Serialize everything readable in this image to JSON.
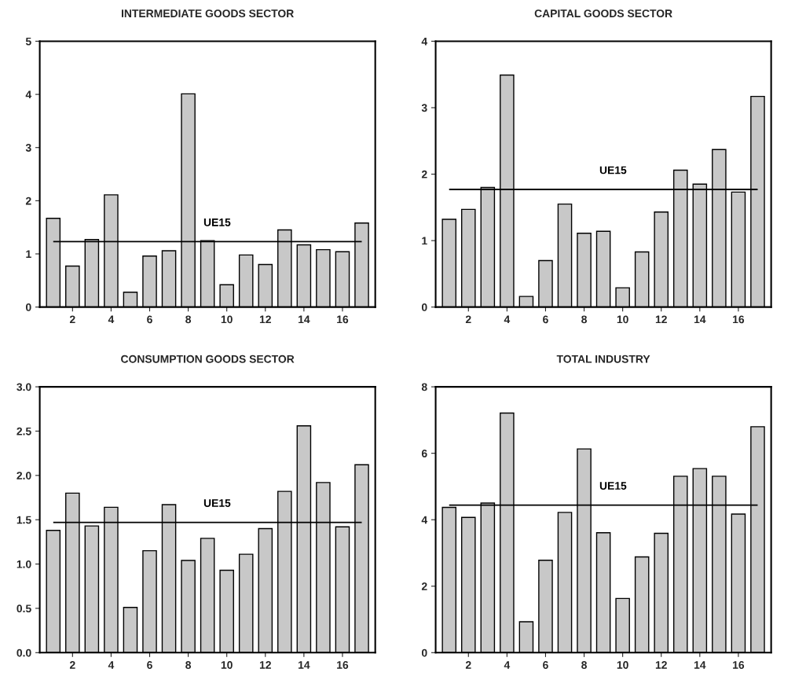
{
  "chart_data": [
    {
      "type": "bar",
      "title": "INTERMEDIATE GOODS SECTOR",
      "x": [
        1,
        2,
        3,
        4,
        5,
        6,
        7,
        8,
        9,
        10,
        11,
        12,
        13,
        14,
        15,
        16,
        17
      ],
      "values": [
        1.67,
        0.77,
        1.27,
        2.11,
        0.28,
        0.96,
        1.06,
        4.01,
        1.25,
        0.42,
        0.98,
        0.8,
        1.45,
        1.17,
        1.08,
        1.04,
        1.58
      ],
      "color": "#c8c8c8",
      "xlim": [
        0.3,
        17.7
      ],
      "xticks": [
        2,
        4,
        6,
        8,
        10,
        12,
        14,
        16
      ],
      "ylim": [
        0,
        5
      ],
      "yticks": [
        0,
        1,
        2,
        3,
        4,
        5
      ],
      "ref_lines": [
        {
          "axis": "y",
          "value": 1.23,
          "label": "UE15"
        }
      ],
      "grid": false
    },
    {
      "type": "bar",
      "title": "CAPITAL GOODS SECTOR",
      "x": [
        1,
        2,
        3,
        4,
        5,
        6,
        7,
        8,
        9,
        10,
        11,
        12,
        13,
        14,
        15,
        16,
        17
      ],
      "values": [
        1.32,
        1.47,
        1.8,
        3.49,
        0.16,
        0.7,
        1.55,
        1.11,
        1.14,
        0.29,
        0.83,
        1.43,
        2.06,
        1.85,
        2.37,
        1.73,
        3.17
      ],
      "color": "#c8c8c8",
      "xlim": [
        0.3,
        17.7
      ],
      "xticks": [
        2,
        4,
        6,
        8,
        10,
        12,
        14,
        16
      ],
      "ylim": [
        0,
        4
      ],
      "yticks": [
        0,
        1,
        2,
        3,
        4
      ],
      "ref_lines": [
        {
          "axis": "y",
          "value": 1.77,
          "label": "UE15"
        }
      ],
      "grid": false
    },
    {
      "type": "bar",
      "title": "CONSUMPTION GOODS SECTOR",
      "x": [
        1,
        2,
        3,
        4,
        5,
        6,
        7,
        8,
        9,
        10,
        11,
        12,
        13,
        14,
        15,
        16,
        17
      ],
      "values": [
        1.38,
        1.8,
        1.43,
        1.64,
        0.51,
        1.15,
        1.67,
        1.04,
        1.29,
        0.93,
        1.11,
        1.4,
        1.82,
        2.56,
        1.92,
        1.42,
        2.12
      ],
      "color": "#c8c8c8",
      "xlim": [
        0.3,
        17.7
      ],
      "xticks": [
        2,
        4,
        6,
        8,
        10,
        12,
        14,
        16
      ],
      "ylim": [
        0,
        3
      ],
      "yticks": [
        {
          "value": 0,
          "label": "0.0"
        },
        {
          "value": 0.5,
          "label": "0.5"
        },
        {
          "value": 1,
          "label": "1.0"
        },
        {
          "value": 1.5,
          "label": "1.5"
        },
        {
          "value": 2,
          "label": "2.0"
        },
        {
          "value": 2.5,
          "label": "2.5"
        },
        {
          "value": 3,
          "label": "3.0"
        }
      ],
      "ref_lines": [
        {
          "axis": "y",
          "value": 1.47,
          "label": "UE15"
        }
      ],
      "grid": false
    },
    {
      "type": "bar",
      "title": "TOTAL INDUSTRY",
      "x": [
        1,
        2,
        3,
        4,
        5,
        6,
        7,
        8,
        9,
        10,
        11,
        12,
        13,
        14,
        15,
        16,
        17
      ],
      "values": [
        4.37,
        4.07,
        4.5,
        7.21,
        0.93,
        2.78,
        4.22,
        6.13,
        3.61,
        1.63,
        2.88,
        3.59,
        5.31,
        5.54,
        5.31,
        4.17,
        6.8
      ],
      "color": "#c8c8c8",
      "xlim": [
        0.3,
        17.7
      ],
      "xticks": [
        2,
        4,
        6,
        8,
        10,
        12,
        14,
        16
      ],
      "ylim": [
        0,
        8
      ],
      "yticks": [
        0,
        2,
        4,
        6,
        8
      ],
      "ref_lines": [
        {
          "axis": "y",
          "value": 4.44,
          "label": "UE15"
        }
      ],
      "grid": false
    }
  ]
}
